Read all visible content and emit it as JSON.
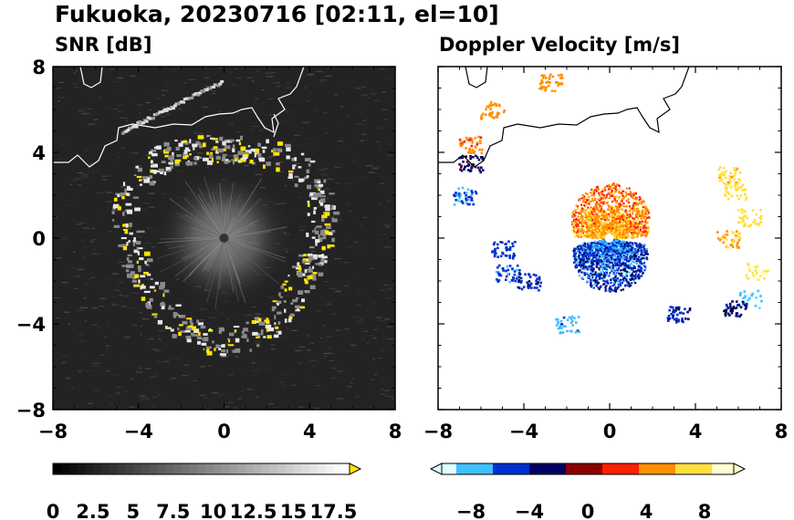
{
  "title": "Fukuoka, 20230716 [02:11, el=10]",
  "chart_data": [
    {
      "type": "heatmap",
      "title": "SNR [dB]",
      "xlim": [
        -8,
        8
      ],
      "ylim": [
        -8,
        8
      ],
      "x_ticks": [
        -8,
        -4,
        0,
        4,
        8
      ],
      "y_ticks": [
        -8,
        -4,
        0,
        4,
        8
      ],
      "x_tick_labels": [
        "−8",
        "−4",
        "0",
        "4",
        "8"
      ],
      "y_tick_labels": [
        "−8",
        "−4",
        "0",
        "4",
        "8"
      ],
      "colorbar": {
        "range": [
          0,
          18.5
        ],
        "ticks": [
          0,
          2.5,
          5,
          7.5,
          10,
          12.5,
          15,
          17.5
        ],
        "tick_labels": [
          "0",
          "2.5",
          "5",
          "7.5",
          "10",
          "12.5",
          "15",
          "17.5"
        ],
        "extend": "max",
        "colors": [
          "#000000",
          "#ffffff",
          "#ffe600"
        ]
      },
      "echo_ring": {
        "center": [
          0,
          0
        ],
        "radius_approx": 4.5
      },
      "background": "#222222"
    },
    {
      "type": "heatmap",
      "title": "Doppler Velocity [m/s]",
      "xlim": [
        -8,
        8
      ],
      "ylim": [
        -8,
        8
      ],
      "x_ticks": [
        -8,
        -4,
        0,
        4,
        8
      ],
      "y_ticks": [
        -8,
        -4,
        0,
        4,
        8
      ],
      "x_tick_labels": [
        "−8",
        "−4",
        "0",
        "4",
        "8"
      ],
      "y_tick_labels": [],
      "colorbar": {
        "range": [
          -10,
          10
        ],
        "ticks": [
          -8,
          -4,
          0,
          4,
          8
        ],
        "tick_labels": [
          "−8",
          "−4",
          "0",
          "4",
          "8"
        ],
        "extend": "both",
        "colors": [
          "#e0ffff",
          "#40c0ff",
          "#0030d0",
          "#000060",
          "#8a0000",
          "#ff2000",
          "#ff9000",
          "#ffe040",
          "#ffffd0"
        ]
      },
      "background": "#ffffff"
    }
  ]
}
